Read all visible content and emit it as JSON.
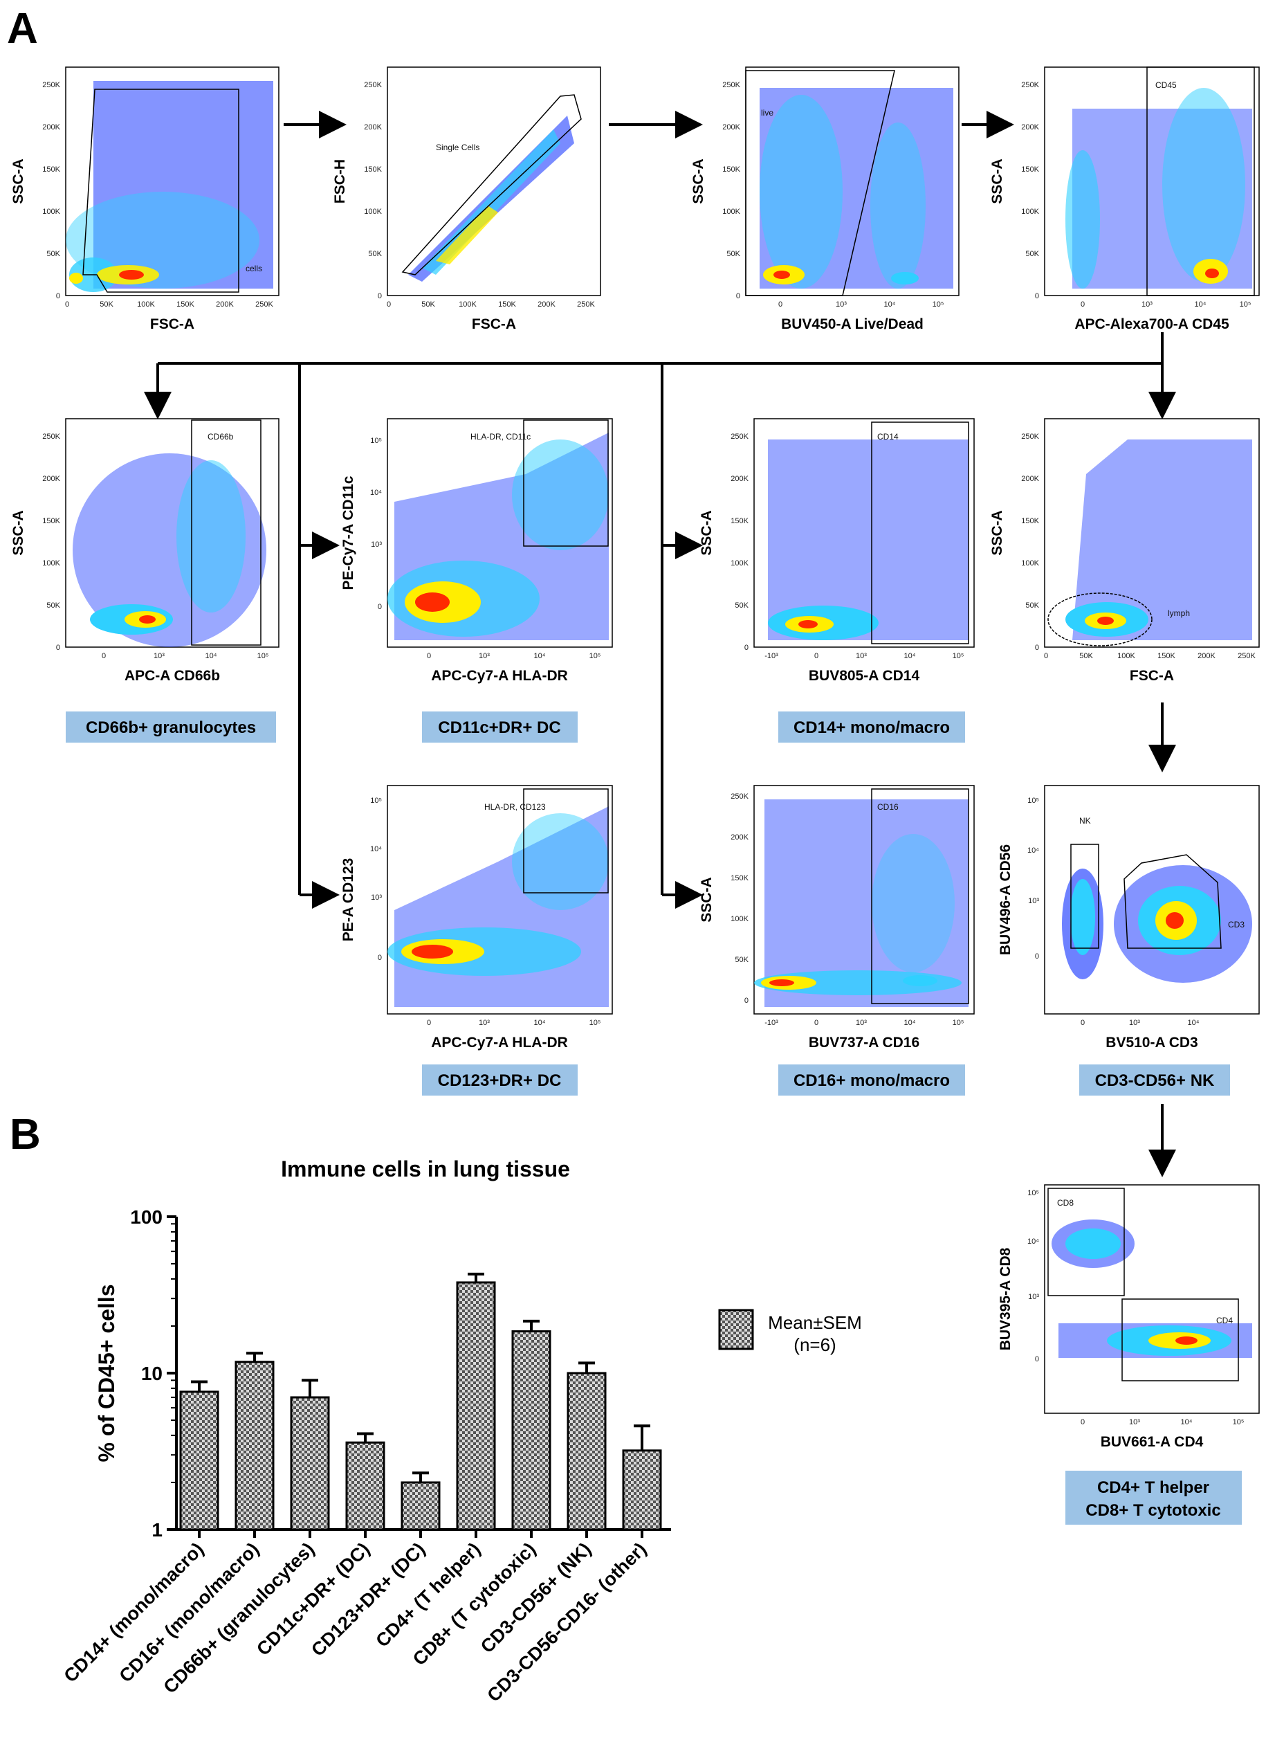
{
  "panel_a_letter": "A",
  "panel_b_letter": "B",
  "colors": {
    "population_label_bg": "#9cc3e6",
    "density_low": "#1f3dff",
    "density_mid": "#2fd0ff",
    "density_high": "#ffee00",
    "density_peak": "#ff2a00",
    "bar_fill_a": "#d9d9d9",
    "bar_fill_b": "#6a6a6a"
  },
  "plots": [
    {
      "id": "p1",
      "ylabel": "SSC-A",
      "xlabel": "FSC-A",
      "yticks": [
        "0",
        "50K",
        "100K",
        "150K",
        "200K",
        "250K"
      ],
      "xticks": [
        "0",
        "50K",
        "100K",
        "150K",
        "200K",
        "250K"
      ],
      "gate_label": "cells"
    },
    {
      "id": "p2",
      "ylabel": "FSC-H",
      "xlabel": "FSC-A",
      "yticks": [
        "0",
        "50K",
        "100K",
        "150K",
        "200K",
        "250K"
      ],
      "xticks": [
        "0",
        "50K",
        "100K",
        "150K",
        "200K",
        "250K"
      ],
      "gate_label": "Single Cells"
    },
    {
      "id": "p3",
      "ylabel": "SSC-A",
      "xlabel": "BUV450-A Live/Dead",
      "yticks": [
        "0",
        "50K",
        "100K",
        "150K",
        "200K",
        "250K"
      ],
      "xticks": [
        "0",
        "10³",
        "10⁴",
        "10⁵"
      ],
      "gate_label": "live"
    },
    {
      "id": "p4",
      "ylabel": "SSC-A",
      "xlabel": "APC-Alexa700-A CD45",
      "yticks": [
        "0",
        "50K",
        "100K",
        "150K",
        "200K",
        "250K"
      ],
      "xticks": [
        "0",
        "10³",
        "10⁴",
        "10⁵"
      ],
      "gate_label": "CD45"
    },
    {
      "id": "p5",
      "ylabel": "SSC-A",
      "xlabel": "APC-A CD66b",
      "yticks": [
        "0",
        "50K",
        "100K",
        "150K",
        "200K",
        "250K"
      ],
      "xticks": [
        "0",
        "10³",
        "10⁴",
        "10⁵"
      ],
      "gate_label": "CD66b"
    },
    {
      "id": "p6",
      "ylabel": "PE-Cy7-A CD11c",
      "xlabel": "APC-Cy7-A HLA-DR",
      "yticks": [
        "0",
        "10³",
        "10⁴",
        "10⁵"
      ],
      "xticks": [
        "0",
        "10³",
        "10⁴",
        "10⁵"
      ],
      "gate_label": "HLA-DR, CD11c"
    },
    {
      "id": "p7",
      "ylabel": "SSC-A",
      "xlabel": "BUV805-A CD14",
      "yticks": [
        "0",
        "50K",
        "100K",
        "150K",
        "200K",
        "250K"
      ],
      "xticks": [
        "-10³",
        "0",
        "10³",
        "10⁴",
        "10⁵"
      ],
      "gate_label": "CD14"
    },
    {
      "id": "p8",
      "ylabel": "SSC-A",
      "xlabel": "FSC-A",
      "yticks": [
        "0",
        "50K",
        "100K",
        "150K",
        "200K",
        "250K"
      ],
      "xticks": [
        "0",
        "50K",
        "100K",
        "150K",
        "200K",
        "250K"
      ],
      "gate_label": "lymph"
    },
    {
      "id": "p9",
      "ylabel": "PE-A CD123",
      "xlabel": "APC-Cy7-A HLA-DR",
      "yticks": [
        "0",
        "10³",
        "10⁴",
        "10⁵"
      ],
      "xticks": [
        "0",
        "10³",
        "10⁴",
        "10⁵"
      ],
      "gate_label": "HLA-DR, CD123"
    },
    {
      "id": "p10",
      "ylabel": "SSC-A",
      "xlabel": "BUV737-A CD16",
      "yticks": [
        "0",
        "50K",
        "100K",
        "150K",
        "200K",
        "250K"
      ],
      "xticks": [
        "-10³",
        "0",
        "10³",
        "10⁴",
        "10⁵"
      ],
      "gate_label": "CD16"
    },
    {
      "id": "p11",
      "ylabel": "BUV496-A CD56",
      "xlabel": "BV510-A CD3",
      "yticks": [
        "0",
        "10³",
        "10⁴",
        "10⁵"
      ],
      "xticks": [
        "0",
        "10³",
        "10⁴"
      ],
      "gate_label": "NK",
      "gate_label2": "CD3"
    },
    {
      "id": "p12",
      "ylabel": "BUV395-A CD8",
      "xlabel": "BUV661-A CD4",
      "yticks": [
        "0",
        "10³",
        "10⁴",
        "10⁵"
      ],
      "xticks": [
        "0",
        "10³",
        "10⁴",
        "10⁵"
      ],
      "gate_label": "CD8",
      "gate_label2": "CD4"
    }
  ],
  "population_labels": [
    "CD66b+ granulocytes",
    "CD11c+DR+ DC",
    "CD14+ mono/macro",
    "CD123+DR+ DC",
    "CD16+ mono/macro",
    "CD3-CD56+ NK",
    "CD4+ T helper",
    "CD8+ T cytotoxic"
  ],
  "chart_data": {
    "type": "bar",
    "title": "Immune cells in lung tissue",
    "xlabel": "",
    "ylabel": "% of CD45+ cells",
    "yscale": "log",
    "ylim": [
      1,
      100
    ],
    "yticks": [
      "1",
      "10",
      "100"
    ],
    "categories": [
      "CD14+ (mono/macro)",
      "CD16+ (mono/macro)",
      "CD66b+ (granulocytes)",
      "CD11c+DR+ (DC)",
      "CD123+DR+ (DC)",
      "CD4+ (T helper)",
      "CD8+ (T cytotoxic)",
      "CD3-CD56+ (NK)",
      "CD3-CD56-CD16- (other)"
    ],
    "values": [
      7.6,
      11.8,
      7.0,
      3.6,
      2.0,
      38.0,
      18.5,
      10.0,
      3.2
    ],
    "errors": [
      1.2,
      1.6,
      2.0,
      0.5,
      0.3,
      5.0,
      3.0,
      1.6,
      1.4
    ],
    "legend": {
      "label_line1": "Mean±SEM",
      "label_line2": "(n=6)"
    }
  }
}
